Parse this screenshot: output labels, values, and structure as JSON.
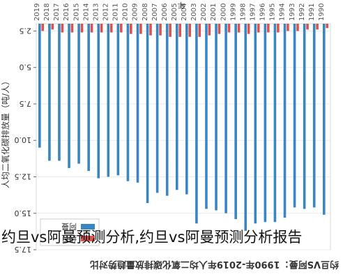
{
  "chart_data": {
    "type": "bar",
    "title": "约旦VS阿曼：1990年-2019年人均二氧化碳排放量趋势对比",
    "ylabel": "人均二氧化碳排放量（吨/人）",
    "xlabel": "年",
    "categories": [
      "1990",
      "1991",
      "1992",
      "1993",
      "1994",
      "1995",
      "1996",
      "1997",
      "1998",
      "1999",
      "2000",
      "2001",
      "2002",
      "2003",
      "2004",
      "2005",
      "2006",
      "2007",
      "2008",
      "2009",
      "2010",
      "2011",
      "2012",
      "2013",
      "2014",
      "2015",
      "2016",
      "2017",
      "2018",
      "2019"
    ],
    "series": [
      {
        "name": "约旦",
        "color": "#d9534f",
        "values": [
          2.3,
          2.4,
          2.4,
          2.5,
          2.5,
          2.6,
          2.6,
          2.6,
          2.7,
          2.6,
          2.6,
          2.7,
          2.8,
          2.9,
          2.9,
          2.9,
          2.9,
          2.8,
          2.8,
          2.7,
          2.7,
          2.6,
          2.6,
          2.6,
          2.6,
          2.6,
          2.6,
          2.6,
          2.4,
          2.5
        ]
      },
      {
        "name": "阿曼",
        "color": "#3a86c2",
        "values": [
          15.1,
          14.6,
          14.7,
          14.6,
          15.3,
          15.6,
          15.6,
          15.7,
          16.2,
          15.4,
          15.0,
          14.8,
          14.7,
          15.7,
          13.7,
          13.4,
          13.8,
          13.6,
          14.3,
          12.9,
          12.8,
          12.4,
          12.5,
          12.6,
          12.1,
          11.6,
          11.9,
          11.4,
          11.4,
          10.5
        ]
      }
    ],
    "ylim": [
      2.0,
      17.5
    ],
    "yticks": [
      "17.5",
      "15.0",
      "12.5",
      "10.0",
      "7.5",
      "5.0",
      "2.5"
    ],
    "grid": true,
    "legend_position": "top-right"
  },
  "caption": "约旦vs阿曼预测分析,约旦vs阿曼预测分析报告"
}
